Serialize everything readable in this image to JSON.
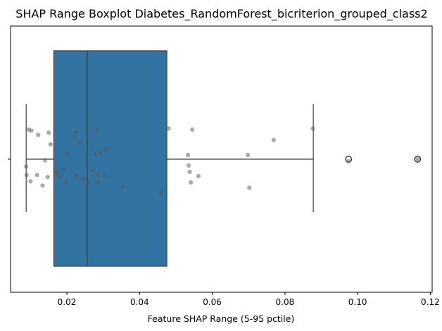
{
  "chart_data": {
    "type": "box",
    "title": "SHAP Range Boxplot Diabetes_RandomForest_bicriterion_grouped_class2",
    "xlabel": "Feature SHAP Range (5-95 pctile)",
    "ylabel": "",
    "xlim": [
      0.0045,
      0.1205
    ],
    "xticks": [
      0.02,
      0.04,
      0.06,
      0.08,
      0.1,
      0.12
    ],
    "xtick_labels": [
      "0.02",
      "0.04",
      "0.06",
      "0.08",
      "0.10",
      "0.12"
    ],
    "box": {
      "whisker_low": 0.0088,
      "q1": 0.0164,
      "median": 0.0256,
      "q3": 0.0475,
      "whisker_high": 0.0878,
      "outliers": [
        0.0975,
        0.1165
      ],
      "color": "#3274a1",
      "edge_color": "#3d3d3d"
    },
    "points": [
      {
        "x": 0.0095,
        "j": 0.28
      },
      {
        "x": 0.0102,
        "j": 0.27
      },
      {
        "x": 0.0121,
        "j": 0.23
      },
      {
        "x": 0.015,
        "j": 0.25
      },
      {
        "x": 0.0155,
        "j": 0.14
      },
      {
        "x": 0.0227,
        "j": 0.26
      },
      {
        "x": 0.0221,
        "j": 0.21
      },
      {
        "x": 0.0235,
        "j": 0.16
      },
      {
        "x": 0.0284,
        "j": 0.28
      },
      {
        "x": 0.048,
        "j": 0.29
      },
      {
        "x": 0.0545,
        "j": 0.28
      },
      {
        "x": 0.0877,
        "j": 0.29
      },
      {
        "x": 0.0769,
        "j": 0.18
      },
      {
        "x": 0.0202,
        "j": 0.05
      },
      {
        "x": 0.0279,
        "j": 0.05
      },
      {
        "x": 0.0292,
        "j": 0.06
      },
      {
        "x": 0.0307,
        "j": 0.09
      },
      {
        "x": 0.0533,
        "j": 0.04
      },
      {
        "x": 0.0698,
        "j": 0.04
      },
      {
        "x": 0.014,
        "j": -0.01
      },
      {
        "x": 0.0088,
        "j": -0.07
      },
      {
        "x": 0.0089,
        "j": -0.15
      },
      {
        "x": 0.01,
        "j": -0.21
      },
      {
        "x": 0.0118,
        "j": -0.15
      },
      {
        "x": 0.0133,
        "j": -0.25
      },
      {
        "x": 0.0147,
        "j": -0.17
      },
      {
        "x": 0.0168,
        "j": -0.12
      },
      {
        "x": 0.0175,
        "j": -0.13
      },
      {
        "x": 0.0181,
        "j": -0.17
      },
      {
        "x": 0.0191,
        "j": -0.1
      },
      {
        "x": 0.0198,
        "j": -0.22
      },
      {
        "x": 0.0228,
        "j": -0.16
      },
      {
        "x": 0.0245,
        "j": -0.19
      },
      {
        "x": 0.0258,
        "j": -0.22
      },
      {
        "x": 0.0272,
        "j": -0.11
      },
      {
        "x": 0.0284,
        "j": -0.15
      },
      {
        "x": 0.0285,
        "j": -0.22
      },
      {
        "x": 0.0305,
        "j": -0.16
      },
      {
        "x": 0.0353,
        "j": -0.26
      },
      {
        "x": 0.0459,
        "j": -0.32
      },
      {
        "x": 0.0535,
        "j": -0.06
      },
      {
        "x": 0.0538,
        "j": -0.12
      },
      {
        "x": 0.0541,
        "j": -0.22
      },
      {
        "x": 0.0562,
        "j": -0.16
      },
      {
        "x": 0.0702,
        "j": -0.27
      },
      {
        "x": 0.0975,
        "j": -0.02
      },
      {
        "x": 0.1165,
        "j": 0.0
      }
    ],
    "point_color": "#555555",
    "grid": false,
    "legend": "none"
  }
}
